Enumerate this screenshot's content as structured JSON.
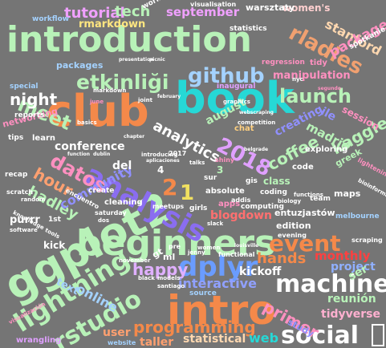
{
  "palette": {
    "background": "#757575"
  },
  "words": [
    {
      "text": "introduction",
      "color": "#b8f2b8"
    },
    {
      "text": "book",
      "color": "#26d8d6"
    },
    {
      "text": "club",
      "color": "#f4894a"
    },
    {
      "text": "beginners",
      "color": "#b8f2b8"
    },
    {
      "text": "ggplot2",
      "color": "#b8f2b8"
    },
    {
      "text": "intro",
      "color": "#f4894a"
    },
    {
      "text": "analysis",
      "color": "#8a6df0"
    },
    {
      "text": "machine",
      "color": "#ffffff"
    },
    {
      "text": "dplyr",
      "color": "#6a9cff"
    },
    {
      "text": "lightning",
      "color": "#b8f2b8"
    },
    {
      "text": "rstudio",
      "color": "#b8f2b8"
    },
    {
      "text": "social",
      "color": "#ffffff"
    },
    {
      "text": "event",
      "color": "#f4894a"
    },
    {
      "text": "github",
      "color": "#a4d2ff"
    },
    {
      "text": "etkinliği",
      "color": "#b8f2b8"
    },
    {
      "text": "meet",
      "color": "#b8f2b8"
    },
    {
      "text": "launch",
      "color": "#b8f2b8"
    },
    {
      "text": "rladies",
      "color": "#f0a070"
    },
    {
      "text": "2018",
      "color": "#e0a0ff"
    },
    {
      "text": "night",
      "color": "#ffffff"
    },
    {
      "text": "datos",
      "color": "#ff90c0"
    },
    {
      "text": "programming",
      "color": "#f4894a"
    },
    {
      "text": "tutorial",
      "color": "#f0a0ff"
    },
    {
      "text": "tech",
      "color": "#b8f2b8"
    },
    {
      "text": "september",
      "color": "#f0a0ff"
    },
    {
      "text": "rmarkdown",
      "color": "#ffe680"
    },
    {
      "text": "women's",
      "color": "#ffd0d0"
    },
    {
      "text": "stanford",
      "color": "#ffd8b0"
    },
    {
      "text": "package",
      "color": "#ff90c0"
    },
    {
      "text": "kaggle",
      "color": "#b8f2b8"
    },
    {
      "text": "analytics",
      "color": "#ffffff"
    },
    {
      "text": "hour",
      "color": "#ffa070"
    },
    {
      "text": "hands",
      "color": "#f4894a"
    },
    {
      "text": "happy",
      "color": "#e0b0ff"
    },
    {
      "text": "coffee",
      "color": "#b8f2b8"
    },
    {
      "text": "hadley",
      "color": "#b8f2b8"
    },
    {
      "text": "conference",
      "color": "#ffffff"
    },
    {
      "text": "primer",
      "color": "#ff90c0"
    },
    {
      "text": "interactive",
      "color": "#90a0ff"
    },
    {
      "text": "kickoff",
      "color": "#ffffff"
    },
    {
      "text": "monthly",
      "color": "#ff4040"
    },
    {
      "text": "community",
      "color": "#9090ff"
    },
    {
      "text": "purrr",
      "color": "#ffffff"
    },
    {
      "text": "online",
      "color": "#a4d2ff"
    },
    {
      "text": "blogdown",
      "color": "#ff7070"
    },
    {
      "text": "tidyverse",
      "color": "#ffb0d0"
    },
    {
      "text": "project",
      "color": "#90b0ff"
    },
    {
      "text": "reunión",
      "color": "#b8f2b8"
    },
    {
      "text": "user",
      "color": "#ffa070"
    },
    {
      "text": "statistical",
      "color": "#ffd8b0"
    },
    {
      "text": "web",
      "color": "#26d8d6"
    },
    {
      "text": "taller",
      "color": "#ffa070"
    },
    {
      "text": "text",
      "color": "#a4d2ff"
    },
    {
      "text": "ser",
      "color": "#b8f2b8"
    },
    {
      "text": "2",
      "color": "#f4894a"
    },
    {
      "text": "1",
      "color": "#f0e060"
    },
    {
      "text": "packages",
      "color": "#a4d2ff"
    },
    {
      "text": "manipulation",
      "color": "#ff90c0"
    },
    {
      "text": "session",
      "color": "#ff90c0"
    },
    {
      "text": "madrid",
      "color": "#b8f2b8"
    },
    {
      "text": "creating",
      "color": "#9090ff"
    },
    {
      "text": "learn",
      "color": "#ffffff"
    },
    {
      "text": "exploring",
      "color": "#ffffff"
    },
    {
      "text": "edition",
      "color": "#ffffff"
    },
    {
      "text": "chat",
      "color": "#ffd080"
    },
    {
      "text": "august",
      "color": "#b8f2b8"
    },
    {
      "text": "class",
      "color": "#b8f2b8"
    },
    {
      "text": "code",
      "color": "#ffffff"
    },
    {
      "text": "kick",
      "color": "#ffffff"
    },
    {
      "text": "maps",
      "color": "#ffffff"
    },
    {
      "text": "entuzjastów",
      "color": "#ffffff"
    },
    {
      "text": "melbourne",
      "color": "#a4d2ff"
    },
    {
      "text": "computing",
      "color": "#ffffff"
    },
    {
      "text": "evening",
      "color": "#ffffff"
    },
    {
      "text": "coding",
      "color": "#ffffff"
    },
    {
      "text": "absolute",
      "color": "#ffffff"
    },
    {
      "text": "cleaning",
      "color": "#ffffff"
    },
    {
      "text": "create",
      "color": "#ffffff"
    },
    {
      "text": "special",
      "color": "#a4d2ff"
    },
    {
      "text": "workflow",
      "color": "#a4d2ff"
    },
    {
      "text": "statistics",
      "color": "#ffffff"
    },
    {
      "text": "warsztaty",
      "color": "#ffffff"
    },
    {
      "text": "visualisation",
      "color": "#ffffff"
    },
    {
      "text": "regression",
      "color": "#ff90c0"
    },
    {
      "text": "tidy",
      "color": "#ff90c0"
    },
    {
      "text": "inaugural",
      "color": "#e0a0ff"
    },
    {
      "text": "networking",
      "color": "#ff90c0"
    },
    {
      "text": "reports",
      "color": "#ffffff"
    },
    {
      "text": "tips",
      "color": "#ffffff"
    },
    {
      "text": "scratch",
      "color": "#ffffff"
    },
    {
      "text": "wrangling",
      "color": "#e0a0ff"
    },
    {
      "text": "website",
      "color": "#a4d2ff"
    },
    {
      "text": "source",
      "color": "#a4d2ff"
    },
    {
      "text": "functional",
      "color": "#ffffff"
    },
    {
      "text": "workshop",
      "color": "#ffffff"
    },
    {
      "text": "lightening",
      "color": "#ff90c0"
    },
    {
      "text": "competition",
      "color": "#ffffff"
    },
    {
      "text": "greek",
      "color": "#b8f2b8"
    },
    {
      "text": "spotkanie",
      "color": "#ffffff"
    },
    {
      "text": "apps",
      "color": "#ff90c0"
    },
    {
      "text": "addis",
      "color": "#ffffff"
    },
    {
      "text": "saturday",
      "color": "#ffffff"
    },
    {
      "text": "2017",
      "color": "#ffffff"
    },
    {
      "text": "4",
      "color": "#ffffff"
    },
    {
      "text": "3",
      "color": "#b8f2b8"
    },
    {
      "text": "gis",
      "color": "#ffffff"
    },
    {
      "text": "team",
      "color": "#ffffff"
    },
    {
      "text": "ml",
      "color": "#ffffff"
    },
    {
      "text": "ile",
      "color": "#9090ff"
    },
    {
      "text": "del",
      "color": "#ffffff"
    },
    {
      "text": "sur",
      "color": "#ffffff"
    },
    {
      "text": "study",
      "color": "#9090ff"
    },
    {
      "text": "meetups",
      "color": "#ffffff"
    },
    {
      "text": "shiny",
      "color": "#ff90c0"
    },
    {
      "text": "talks",
      "color": "#ffffff"
    },
    {
      "text": "bioinformatics",
      "color": "#ffffff"
    },
    {
      "text": "women",
      "color": "#ffffff"
    },
    {
      "text": "pre",
      "color": "#ffffff"
    },
    {
      "text": "jenny",
      "color": "#ffffff"
    },
    {
      "text": "santiago",
      "color": "#ffffff"
    },
    {
      "text": "black",
      "color": "#ffffff"
    },
    {
      "text": "models",
      "color": "#ffffff"
    },
    {
      "text": "november",
      "color": "#ffffff"
    },
    {
      "text": "visualización",
      "color": "#ff90c0"
    },
    {
      "text": "encuentro",
      "color": "#ffffff"
    },
    {
      "text": "knowledge",
      "color": "#ffffff"
    },
    {
      "text": "software",
      "color": "#ffffff"
    },
    {
      "text": "random",
      "color": "#ffffff"
    },
    {
      "text": "aplicaciones",
      "color": "#ffffff"
    },
    {
      "text": "introducing",
      "color": "#ffffff"
    },
    {
      "text": "functions",
      "color": "#ffffff"
    },
    {
      "text": "belgrade",
      "color": "#ffffff"
    },
    {
      "text": "recap",
      "color": "#ffffff"
    },
    {
      "text": "chapter",
      "color": "#ffffff"
    },
    {
      "text": "biology",
      "color": "#ffffff"
    },
    {
      "text": "graphics",
      "color": "#ffffff"
    },
    {
      "text": "girls",
      "color": "#ffffff"
    },
    {
      "text": "markdown",
      "color": "#ffffff"
    },
    {
      "text": "presentation",
      "color": "#ffffff"
    },
    {
      "text": "picnic",
      "color": "#ffffff"
    },
    {
      "text": "february",
      "color": "#ffffff"
    },
    {
      "text": "joint",
      "color": "#ffffff"
    },
    {
      "text": "june",
      "color": "#ff90c0"
    },
    {
      "text": "basics",
      "color": "#ffffff"
    },
    {
      "text": "louisville",
      "color": "#ffffff"
    },
    {
      "text": "function",
      "color": "#ffffff"
    },
    {
      "text": "dublin",
      "color": "#ffffff"
    },
    {
      "text": "dos",
      "color": "#ffffff"
    },
    {
      "text": "gt",
      "color": "#ffffff"
    },
    {
      "text": "1st",
      "color": "#ffffff"
    },
    {
      "text": "tools",
      "color": "#ffffff"
    },
    {
      "text": "webscraping",
      "color": "#ffffff"
    },
    {
      "text": "segundo",
      "color": "#ff90c0"
    },
    {
      "text": "scraping",
      "color": "#ffffff"
    },
    {
      "text": "nyc",
      "color": "#ffffff"
    },
    {
      "text": "slack",
      "color": "#ffffff"
    }
  ]
}
